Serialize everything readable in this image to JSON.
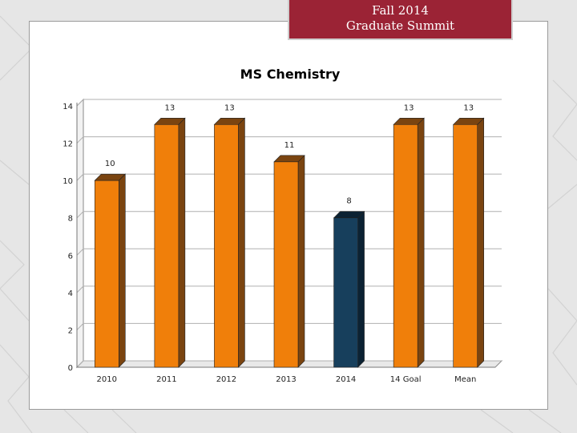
{
  "banner": {
    "line1": "Fall 2014",
    "line2": "Graduate Summit"
  },
  "colors": {
    "banner_bg": "#9b2335",
    "orange": "#f07f0a",
    "orange_side": "#7a4410",
    "navy": "#173f5c",
    "navy_side": "#0c2233",
    "background": "#e6e6e6"
  },
  "chart_data": {
    "type": "bar",
    "title": "MS Chemistry",
    "categories": [
      "2010",
      "2011",
      "2012",
      "2013",
      "2014",
      "14 Goal",
      "Mean"
    ],
    "values": [
      10,
      13,
      13,
      11,
      8,
      13,
      13
    ],
    "data_labels": [
      "10",
      "13",
      "13",
      "11",
      "8",
      "13",
      "13"
    ],
    "highlight_category": "2014",
    "xlabel": "",
    "ylabel": "",
    "ylim": [
      0,
      14
    ],
    "yticks": [
      0,
      2,
      4,
      6,
      8,
      10,
      12,
      14
    ],
    "grid": true,
    "style": "3d-column"
  }
}
